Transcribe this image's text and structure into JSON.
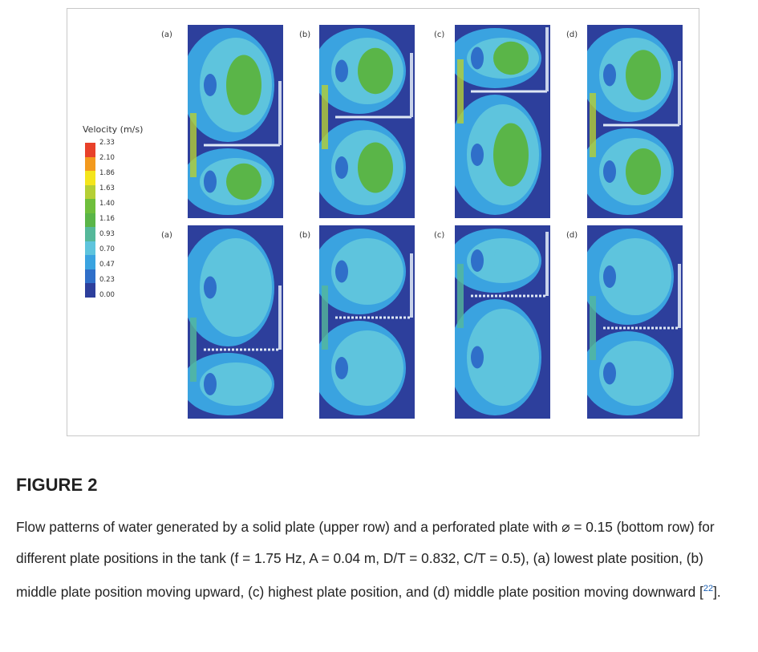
{
  "figure": {
    "legend": {
      "title": "Velocity (m/s)",
      "ticks": [
        "2.33",
        "2.10",
        "1.86",
        "1.63",
        "1.40",
        "1.16",
        "0.93",
        "0.70",
        "0.47",
        "0.23",
        "0.00"
      ],
      "colors": [
        "#e8412a",
        "#f39a1e",
        "#f4e51c",
        "#b5cf35",
        "#6fbf3c",
        "#5ab548",
        "#55b89a",
        "#5ec4dd",
        "#3aa3e0",
        "#2f6fc9",
        "#2d3f9c"
      ]
    },
    "rows": [
      {
        "name": "solid-plate",
        "labels": [
          "(a)",
          "(b)",
          "(c)",
          "(d)"
        ]
      },
      {
        "name": "perforated-plate",
        "labels": [
          "(a)",
          "(b)",
          "(c)",
          "(d)"
        ]
      }
    ]
  },
  "caption": {
    "title": "FIGURE 2",
    "text_before_ref": "Flow patterns of water generated by a solid plate (upper row) and a perforated plate with ⌀ = 0.15 (bottom row) for different plate positions in the tank (f = 1.75 Hz, A = 0.04 m, D/T = 0.832, C/T = 0.5), (a) lowest plate position, (b) middle plate position moving upward, (c) highest plate position, and (d) middle plate position moving downward [",
    "ref": "22",
    "text_after_ref": "]."
  }
}
